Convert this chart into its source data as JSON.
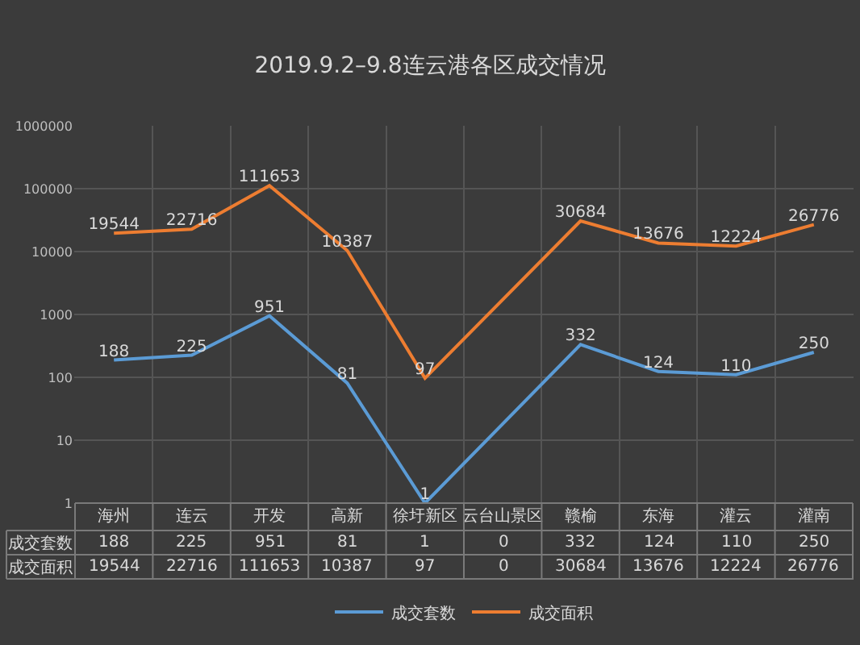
{
  "chart_data": {
    "type": "line",
    "title": "2019.9.2–9.8连云港各区成交情况",
    "categories": [
      "海州",
      "连云",
      "开发",
      "高新",
      "徐圩新区",
      "云台山景区",
      "赣榆",
      "东海",
      "灌云",
      "灌南"
    ],
    "series": [
      {
        "name": "成交套数",
        "color": "#5b9bd5",
        "values": [
          188,
          225,
          951,
          81,
          1,
          null,
          332,
          124,
          110,
          250
        ],
        "value_labels": [
          "188",
          "225",
          "951",
          "81",
          "1",
          "0",
          "332",
          "124",
          "110",
          "250"
        ]
      },
      {
        "name": "成交面积",
        "color": "#ed7d31",
        "values": [
          19544,
          22716,
          111653,
          10387,
          97,
          null,
          30684,
          13676,
          12224,
          26776
        ],
        "value_labels": [
          "19544",
          "22716",
          "111653",
          "10387",
          "97",
          "0",
          "30684",
          "13676",
          "12224",
          "26776"
        ]
      }
    ],
    "log": "y",
    "ylim": [
      1,
      1000000
    ],
    "yticks": [
      1,
      10,
      100,
      1000,
      10000,
      100000,
      1000000
    ],
    "grid": true,
    "legend": "bottom",
    "line_style": "solid"
  }
}
